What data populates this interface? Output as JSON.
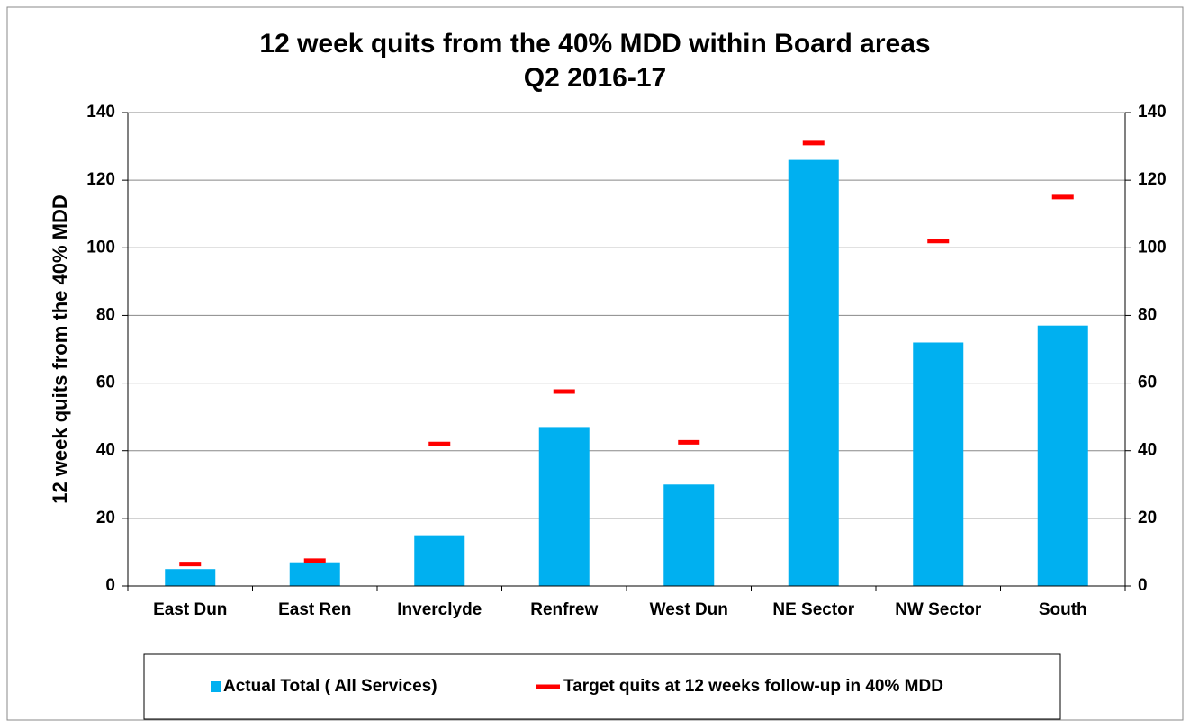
{
  "chart_data": {
    "type": "bar",
    "title": "12 week quits from the 40% MDD within Board areas",
    "subtitle": "Q2 2016-17",
    "y_label": "12 week quits from the 40% MDD",
    "categories": [
      "East Dun",
      "East Ren",
      "Inverclyde",
      "Renfrew",
      "West Dun",
      "NE Sector",
      "NW Sector",
      "South"
    ],
    "series": [
      {
        "name": "Actual Total ( All Services)",
        "color": "#00b0f0",
        "values": [
          5,
          7,
          15,
          47,
          30,
          126,
          72,
          77
        ]
      },
      {
        "name": "Target quits at 12 weeks follow-up in 40% MDD",
        "color": "#ff0000",
        "axis": "y2",
        "marker": "dash",
        "values": [
          6.5,
          7.5,
          42,
          57.5,
          42.5,
          131,
          102,
          115
        ]
      }
    ],
    "ylim": [
      0,
      140
    ],
    "yticks": [
      0,
      20,
      40,
      60,
      80,
      100,
      120,
      140
    ],
    "y2lim": [
      0,
      140
    ],
    "y2ticks": [
      0,
      20,
      40,
      60,
      80,
      100,
      120,
      140
    ],
    "grid": true,
    "legend": "bottom"
  }
}
